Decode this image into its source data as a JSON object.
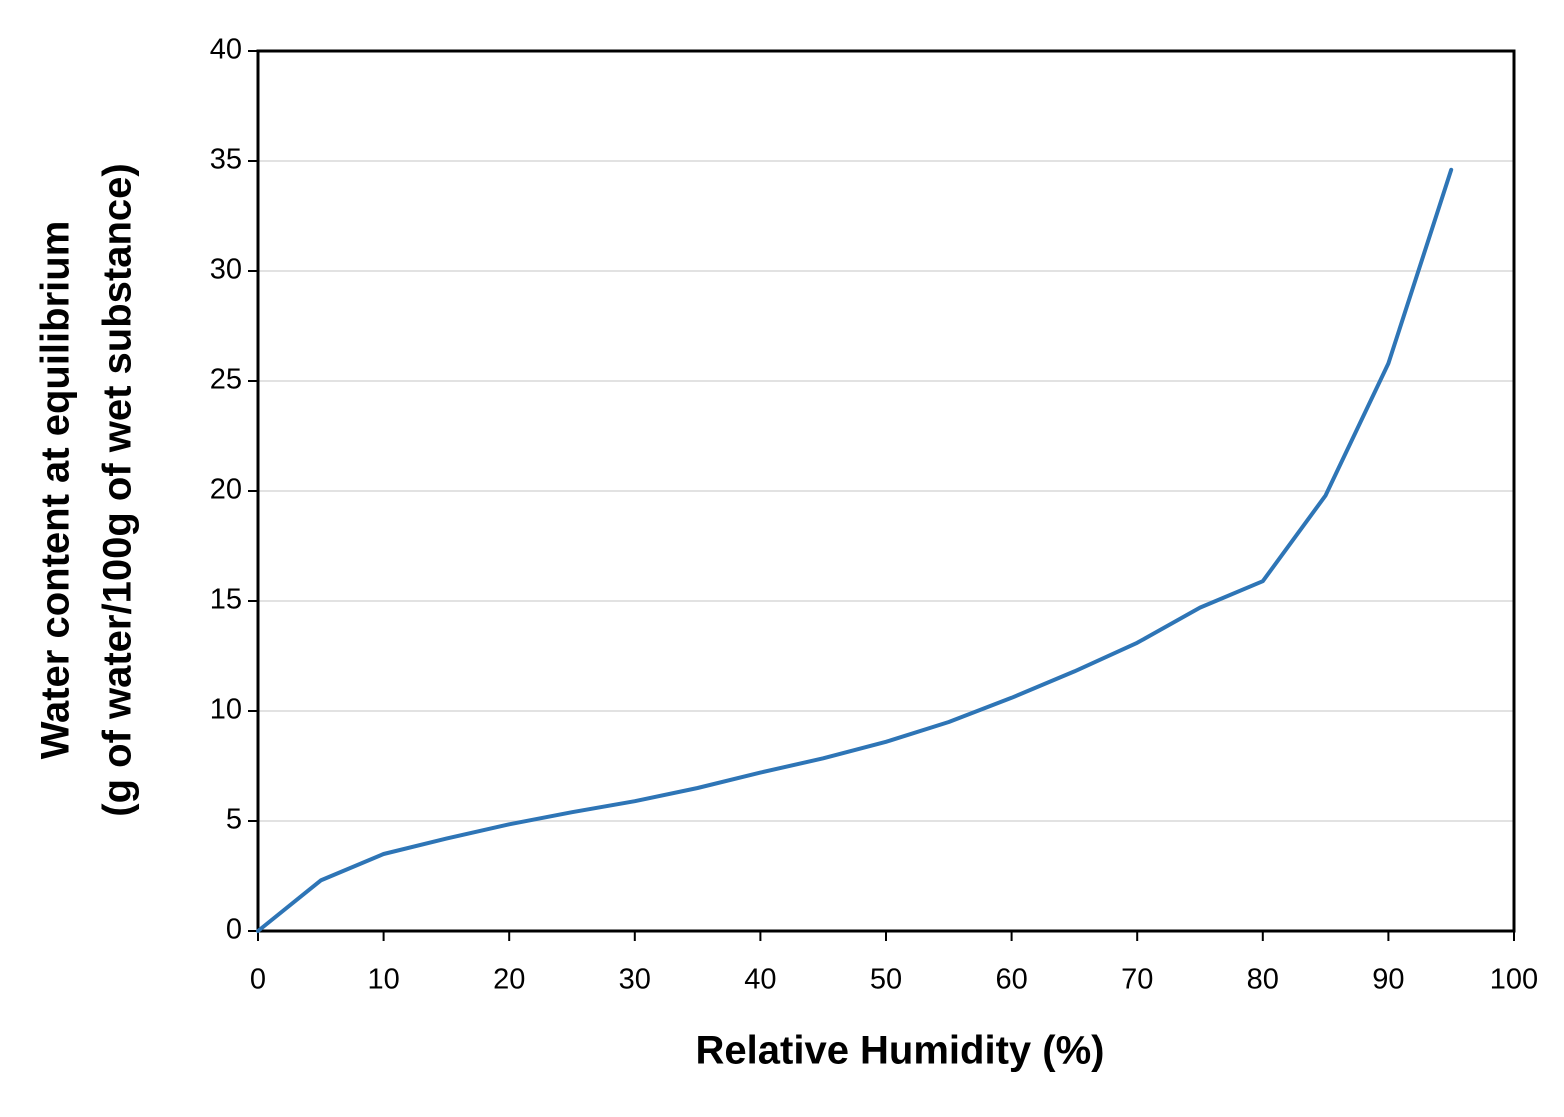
{
  "chart_data": {
    "type": "line",
    "xlabel": "Relative Humidity (%)",
    "ylabel": [
      "Water content at equilibrium",
      "(g of water/100g of wet substance)"
    ],
    "x": [
      0,
      5,
      10,
      15,
      20,
      25,
      30,
      35,
      40,
      45,
      50,
      55,
      60,
      65,
      70,
      75,
      80,
      85,
      90,
      95
    ],
    "series": [
      {
        "color": "#2e75b6",
        "values": [
          0,
          2.3,
          3.5,
          4.2,
          4.85,
          5.4,
          5.9,
          6.5,
          7.2,
          7.85,
          8.6,
          9.5,
          10.6,
          11.8,
          13.1,
          14.7,
          15.9,
          19.8,
          25.8,
          34.6
        ]
      }
    ],
    "xlim": [
      0,
      100
    ],
    "xticks": [
      0,
      10,
      20,
      30,
      40,
      50,
      60,
      70,
      80,
      90,
      100
    ],
    "ylim": [
      0,
      40
    ],
    "yticks": [
      0,
      5,
      10,
      15,
      20,
      25,
      30,
      35,
      40
    ],
    "grid": true
  }
}
